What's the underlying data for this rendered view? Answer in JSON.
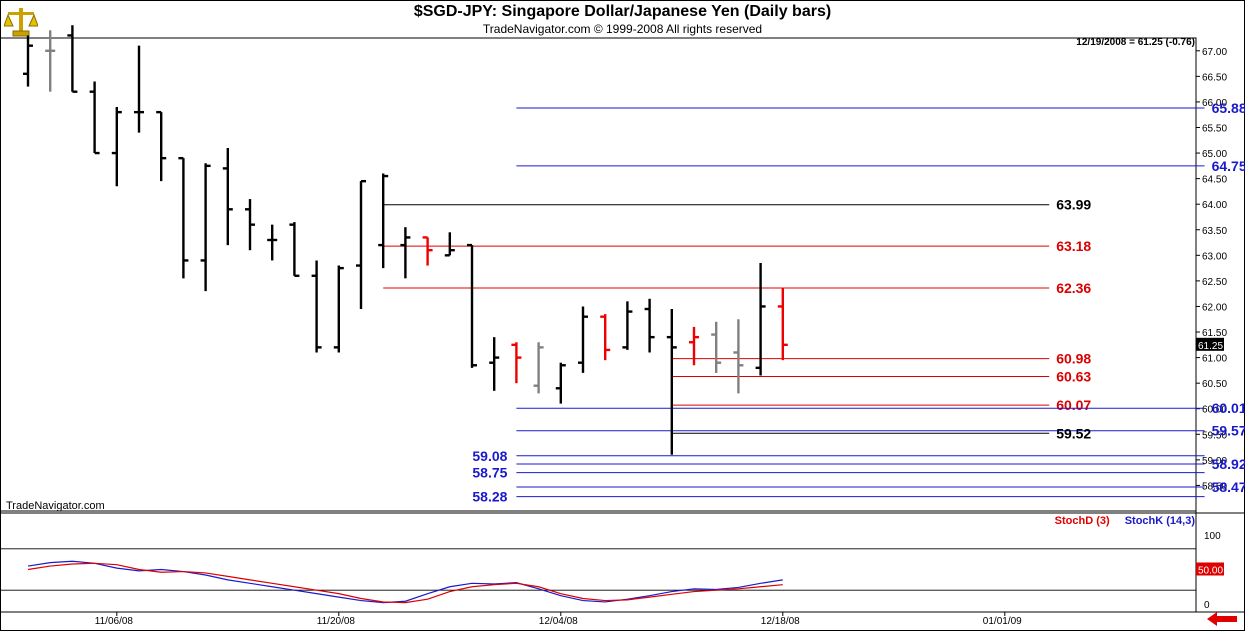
{
  "header": {
    "title": "$SGD-JPY:  Singapore Dollar/Japanese Yen  (Daily bars)",
    "subtitle": "TradeNavigator.com © 1999-2008 All rights reserved",
    "last_info": "12/19/2008 = 61.25 (-0.76)",
    "watermark": "TradeNavigator.com",
    "logo_icon": "scale-logo-icon"
  },
  "indicator": {
    "stoch_d_label": "StochD (3)",
    "stoch_k_label": "StochK (14,3)",
    "level_tag": "50.00",
    "axis_ticks": [
      "100",
      "50",
      "0"
    ]
  },
  "colors": {
    "up": "#000000",
    "down": "#ee0000",
    "neutral": "#808080",
    "blue": "#1a1acc",
    "red": "#dd0000",
    "black": "#000000",
    "stoch_d": "#dd0000",
    "stoch_k": "#1a1acc"
  },
  "chart_data": {
    "type": "ohlc",
    "y_axis": {
      "min": 58.0,
      "max": 67.25,
      "tick_step": 0.5,
      "ticks": [
        "67.00",
        "66.50",
        "66.00",
        "65.50",
        "65.00",
        "64.50",
        "64.00",
        "63.50",
        "63.00",
        "62.50",
        "62.00",
        "61.50",
        "61.00",
        "60.50",
        "60.00",
        "59.50",
        "59.00",
        "58.50"
      ],
      "last_price_tag": "61.25"
    },
    "x_axis": {
      "labels": [
        "11/06/08",
        "11/20/08",
        "12/04/08",
        "12/18/08",
        "01/01/09"
      ],
      "label_bar_index": [
        4,
        14,
        24,
        34,
        44
      ]
    },
    "bars": [
      {
        "o": 66.55,
        "h": 67.3,
        "l": 66.3,
        "c": 67.1,
        "color": "black"
      },
      {
        "o": 67.0,
        "h": 67.4,
        "l": 66.2,
        "c": 67.0,
        "color": "gray"
      },
      {
        "o": 67.3,
        "h": 67.5,
        "l": 66.2,
        "c": 66.2,
        "color": "black"
      },
      {
        "o": 66.2,
        "h": 66.4,
        "l": 65.0,
        "c": 65.0,
        "color": "black"
      },
      {
        "o": 65.0,
        "h": 65.9,
        "l": 64.35,
        "c": 65.8,
        "color": "black"
      },
      {
        "o": 65.8,
        "h": 67.1,
        "l": 65.4,
        "c": 65.8,
        "color": "black"
      },
      {
        "o": 65.8,
        "h": 65.8,
        "l": 64.45,
        "c": 64.9,
        "color": "black"
      },
      {
        "o": 64.9,
        "h": 64.9,
        "l": 62.55,
        "c": 62.9,
        "color": "black"
      },
      {
        "o": 62.9,
        "h": 64.8,
        "l": 62.3,
        "c": 64.75,
        "color": "black"
      },
      {
        "o": 64.7,
        "h": 65.1,
        "l": 63.2,
        "c": 63.9,
        "color": "black"
      },
      {
        "o": 63.9,
        "h": 64.1,
        "l": 63.1,
        "c": 63.6,
        "color": "black"
      },
      {
        "o": 63.3,
        "h": 63.6,
        "l": 62.9,
        "c": 63.3,
        "color": "black"
      },
      {
        "o": 63.6,
        "h": 63.65,
        "l": 62.6,
        "c": 62.6,
        "color": "black"
      },
      {
        "o": 62.6,
        "h": 62.9,
        "l": 61.1,
        "c": 61.2,
        "color": "black"
      },
      {
        "o": 61.2,
        "h": 62.8,
        "l": 61.1,
        "c": 62.75,
        "color": "black"
      },
      {
        "o": 62.8,
        "h": 64.45,
        "l": 61.95,
        "c": 64.45,
        "color": "black"
      },
      {
        "o": 63.2,
        "h": 64.6,
        "l": 62.75,
        "c": 64.55,
        "color": "black"
      },
      {
        "o": 63.2,
        "h": 63.55,
        "l": 62.55,
        "c": 63.35,
        "color": "black"
      },
      {
        "o": 63.35,
        "h": 63.35,
        "l": 62.8,
        "c": 63.1,
        "color": "red"
      },
      {
        "o": 63.0,
        "h": 63.45,
        "l": 63.0,
        "c": 63.1,
        "color": "black"
      },
      {
        "o": 63.2,
        "h": 63.2,
        "l": 60.8,
        "c": 60.85,
        "color": "black"
      },
      {
        "o": 60.9,
        "h": 61.4,
        "l": 60.35,
        "c": 61.0,
        "color": "black"
      },
      {
        "o": 61.25,
        "h": 61.3,
        "l": 60.5,
        "c": 61.0,
        "color": "red"
      },
      {
        "o": 60.45,
        "h": 61.3,
        "l": 60.3,
        "c": 61.2,
        "color": "gray"
      },
      {
        "o": 60.4,
        "h": 60.9,
        "l": 60.1,
        "c": 60.85,
        "color": "black"
      },
      {
        "o": 60.9,
        "h": 62.0,
        "l": 60.7,
        "c": 61.8,
        "color": "black"
      },
      {
        "o": 61.8,
        "h": 61.85,
        "l": 60.95,
        "c": 61.15,
        "color": "red"
      },
      {
        "o": 61.2,
        "h": 62.1,
        "l": 61.15,
        "c": 61.9,
        "color": "black"
      },
      {
        "o": 61.95,
        "h": 62.15,
        "l": 61.1,
        "c": 61.4,
        "color": "black"
      },
      {
        "o": 61.4,
        "h": 61.95,
        "l": 59.1,
        "c": 61.2,
        "color": "black"
      },
      {
        "o": 61.3,
        "h": 61.6,
        "l": 60.85,
        "c": 61.4,
        "color": "red"
      },
      {
        "o": 61.45,
        "h": 61.7,
        "l": 60.7,
        "c": 60.9,
        "color": "gray"
      },
      {
        "o": 61.1,
        "h": 61.75,
        "l": 60.3,
        "c": 60.85,
        "color": "gray"
      },
      {
        "o": 60.8,
        "h": 62.85,
        "l": 60.65,
        "c": 62.0,
        "color": "black"
      },
      {
        "o": 62.0,
        "h": 62.35,
        "l": 60.95,
        "c": 61.25,
        "color": "red"
      }
    ],
    "levels": [
      {
        "value": 65.88,
        "label": "65.88",
        "color": "blue",
        "from_bar": 22,
        "to_bar": 53,
        "label_pos": "right"
      },
      {
        "value": 64.75,
        "label": "64.75",
        "color": "blue",
        "from_bar": 22,
        "to_bar": 53,
        "label_pos": "right"
      },
      {
        "value": 63.99,
        "label": "63.99",
        "color": "black",
        "from_bar": 16,
        "to_bar": 46,
        "label_pos": "right"
      },
      {
        "value": 63.18,
        "label": "63.18",
        "color": "red",
        "from_bar": 16,
        "to_bar": 46,
        "label_pos": "right"
      },
      {
        "value": 62.36,
        "label": "62.36",
        "color": "red",
        "from_bar": 16,
        "to_bar": 46,
        "label_pos": "right"
      },
      {
        "value": 60.98,
        "label": "60.98",
        "color": "red",
        "from_bar": 29,
        "to_bar": 46,
        "label_pos": "right"
      },
      {
        "value": 60.63,
        "label": "60.63",
        "color": "red",
        "from_bar": 29,
        "to_bar": 46,
        "label_pos": "right"
      },
      {
        "value": 60.07,
        "label": "60.07",
        "color": "red",
        "from_bar": 29,
        "to_bar": 46,
        "label_pos": "right"
      },
      {
        "value": 60.01,
        "label": "60.01",
        "color": "blue",
        "from_bar": 22,
        "to_bar": 53,
        "label_pos": "right"
      },
      {
        "value": 59.57,
        "label": "59.57",
        "color": "blue",
        "from_bar": 22,
        "to_bar": 53,
        "label_pos": "right"
      },
      {
        "value": 59.52,
        "label": "59.52",
        "color": "black",
        "from_bar": 29,
        "to_bar": 46,
        "label_pos": "right"
      },
      {
        "value": 59.08,
        "label": "59.08",
        "color": "blue",
        "from_bar": 22,
        "to_bar": 53,
        "label_pos": "left"
      },
      {
        "value": 58.92,
        "label": "58.92",
        "color": "blue",
        "from_bar": 22,
        "to_bar": 53,
        "label_pos": "right"
      },
      {
        "value": 58.75,
        "label": "58.75",
        "color": "blue",
        "from_bar": 22,
        "to_bar": 53,
        "label_pos": "left"
      },
      {
        "value": 58.47,
        "label": "58.47",
        "color": "blue",
        "from_bar": 22,
        "to_bar": 53,
        "label_pos": "right"
      },
      {
        "value": 58.28,
        "label": "58.28",
        "color": "blue",
        "from_bar": 22,
        "to_bar": 53,
        "label_pos": "left"
      }
    ],
    "stochastics": {
      "range": [
        0,
        100
      ],
      "ref_lines": [
        80,
        20
      ],
      "stoch_d": [
        50,
        55,
        58,
        59,
        57,
        50,
        46,
        47,
        45,
        40,
        35,
        30,
        25,
        20,
        15,
        8,
        3,
        2,
        7,
        18,
        25,
        28,
        30,
        25,
        15,
        8,
        5,
        6,
        10,
        14,
        18,
        20,
        22,
        25,
        28
      ],
      "stoch_k": [
        55,
        60,
        62,
        59,
        52,
        48,
        50,
        47,
        42,
        35,
        30,
        25,
        20,
        15,
        10,
        5,
        2,
        4,
        15,
        25,
        30,
        29,
        31,
        22,
        12,
        5,
        3,
        7,
        12,
        18,
        22,
        21,
        24,
        30,
        35
      ]
    }
  }
}
